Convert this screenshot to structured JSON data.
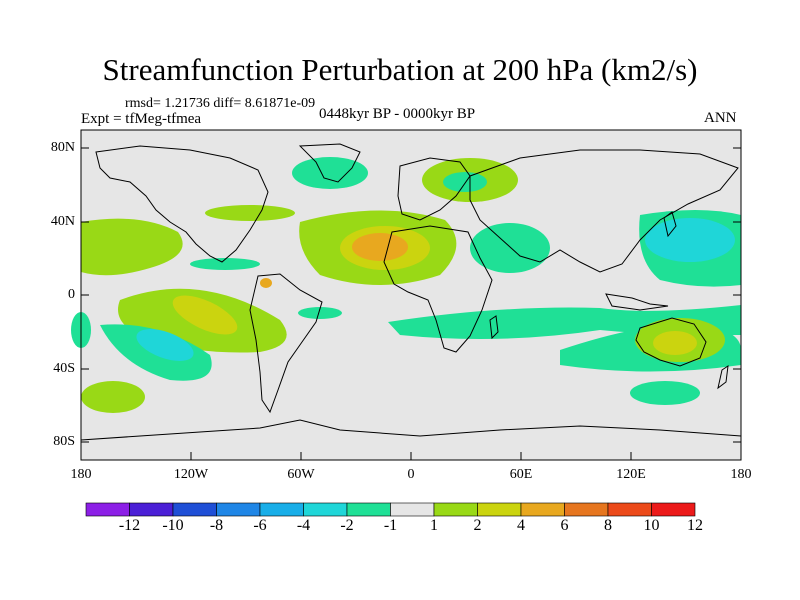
{
  "title": "Streamfunction Perturbation at 200 hPa (km2/s)",
  "stats": "rmsd= 1.21736 diff= 8.61871e-09",
  "experiment": "Expt = tfMeg-tfmea",
  "period": "0448kyr BP - 0000kyr BP",
  "season": "ANN",
  "lat_ticks": [
    "80N",
    "40N",
    "0",
    "40S",
    "80S"
  ],
  "lon_ticks": [
    "180",
    "120W",
    "60W",
    "0",
    "60E",
    "120E",
    "180"
  ],
  "colorbar": {
    "labels": [
      "-12",
      "-10",
      "-8",
      "-6",
      "-4",
      "-2",
      "-1",
      "1",
      "2",
      "4",
      "6",
      "8",
      "10",
      "12"
    ],
    "colors": [
      "#8c1fe6",
      "#4b1fd6",
      "#1f4fd6",
      "#1f86e6",
      "#19aee8",
      "#1fd6d8",
      "#1fe096",
      "#e6e6e6",
      "#99d916",
      "#cbd40f",
      "#e8a81f",
      "#e6761f",
      "#ec4a1a",
      "#ec1a1a"
    ]
  },
  "fields": {
    "background": "#e6e6e6",
    "land_outline": "#000000"
  }
}
